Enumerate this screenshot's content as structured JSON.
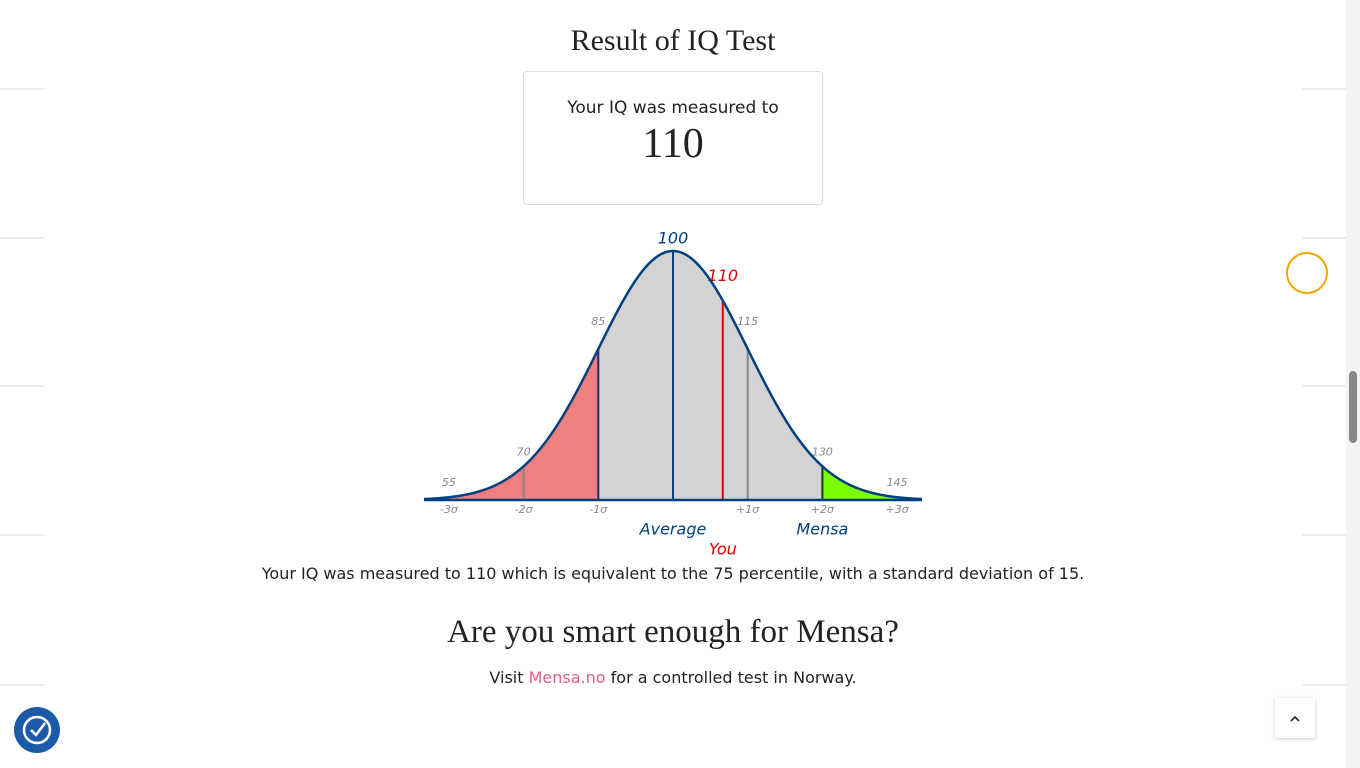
{
  "header": {
    "title": "Result of IQ Test"
  },
  "result": {
    "label": "Your IQ was measured to",
    "value": 110
  },
  "chart_data": {
    "type": "normal-curve",
    "mean": 100,
    "sd": 15,
    "score": 110,
    "xlim": [
      50,
      150
    ],
    "xticks": [
      55,
      70,
      85,
      100,
      115,
      130,
      145
    ],
    "sigma_labels": [
      "-3σ",
      "-2σ",
      "-1σ",
      null,
      "+1σ",
      "+2σ",
      "+3σ"
    ],
    "average_label": "Average",
    "you_label": "You",
    "mensa_label": "Mensa",
    "curve_color": "#004080",
    "fill_color": "#d3d3d3",
    "low_color": "#f08080",
    "mensa_color": "#7cfc00",
    "score_color": "#e00000"
  },
  "summary": {
    "text": "Your IQ was measured to 110 which is equivalent to the 75 percentile, with a standard deviation of 15."
  },
  "mensa": {
    "heading": "Are you smart enough for Mensa?",
    "before": "Visit",
    "link": "Mensa.no",
    "after": "for a controlled test in Norway."
  }
}
